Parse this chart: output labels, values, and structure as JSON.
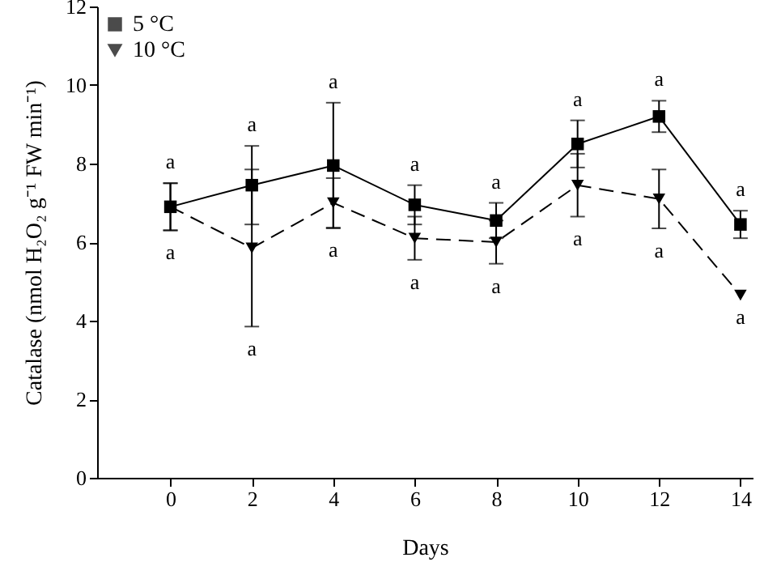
{
  "chart_data": {
    "type": "line",
    "xlabel": "Days",
    "ylabel": "Catalase (nmol H₂O₂ g⁻¹ FW min⁻¹)",
    "x": [
      0,
      2,
      4,
      6,
      8,
      10,
      12,
      14
    ],
    "series": [
      {
        "name": "5 °C",
        "color": "#000000",
        "marker": "square",
        "line_style": "solid",
        "values": [
          6.9,
          7.45,
          7.95,
          6.95,
          6.55,
          8.5,
          9.2,
          6.45
        ],
        "errors": [
          0.6,
          1.0,
          1.6,
          0.5,
          0.45,
          0.6,
          0.4,
          0.35
        ]
      },
      {
        "name": "10 °C",
        "color": "#000000",
        "marker": "triangle",
        "line_style": "dashed",
        "values": [
          6.9,
          5.85,
          7.0,
          6.1,
          6.0,
          7.45,
          7.1,
          4.65
        ],
        "errors": [
          0.6,
          2.0,
          0.63,
          0.55,
          0.55,
          0.8,
          0.75,
          null
        ]
      }
    ],
    "xlim": [
      -1.8,
      14.3
    ],
    "xticks": [
      0,
      2,
      4,
      6,
      8,
      10,
      12,
      14
    ],
    "ylim": [
      0,
      12
    ],
    "yticks": [
      0,
      2,
      4,
      6,
      8,
      10,
      12
    ],
    "grid": false,
    "legend": "top left",
    "annotations": [
      {
        "text": "a",
        "x": 0,
        "y": 7.5
      },
      {
        "text": "a",
        "x": 2,
        "y": 8.45
      },
      {
        "text": "a",
        "x": 4,
        "y": 9.55
      },
      {
        "text": "a",
        "x": 6,
        "y": 7.45
      },
      {
        "text": "a",
        "x": 8,
        "y": 7.0
      },
      {
        "text": "a",
        "x": 10,
        "y": 9.1
      },
      {
        "text": "a",
        "x": 12,
        "y": 9.6
      },
      {
        "text": "a",
        "x": 14,
        "y": 6.8
      },
      {
        "text": "a",
        "x": 0,
        "y": 6.3
      },
      {
        "text": "a",
        "x": 2,
        "y": 3.85
      },
      {
        "text": "a",
        "x": 4,
        "y": 6.37
      },
      {
        "text": "a",
        "x": 6,
        "y": 5.55
      },
      {
        "text": "a",
        "x": 8,
        "y": 5.45
      },
      {
        "text": "a",
        "x": 10,
        "y": 6.65
      },
      {
        "text": "a",
        "x": 12,
        "y": 6.35
      },
      {
        "text": "a",
        "x": 14,
        "y": 4.65
      }
    ]
  }
}
